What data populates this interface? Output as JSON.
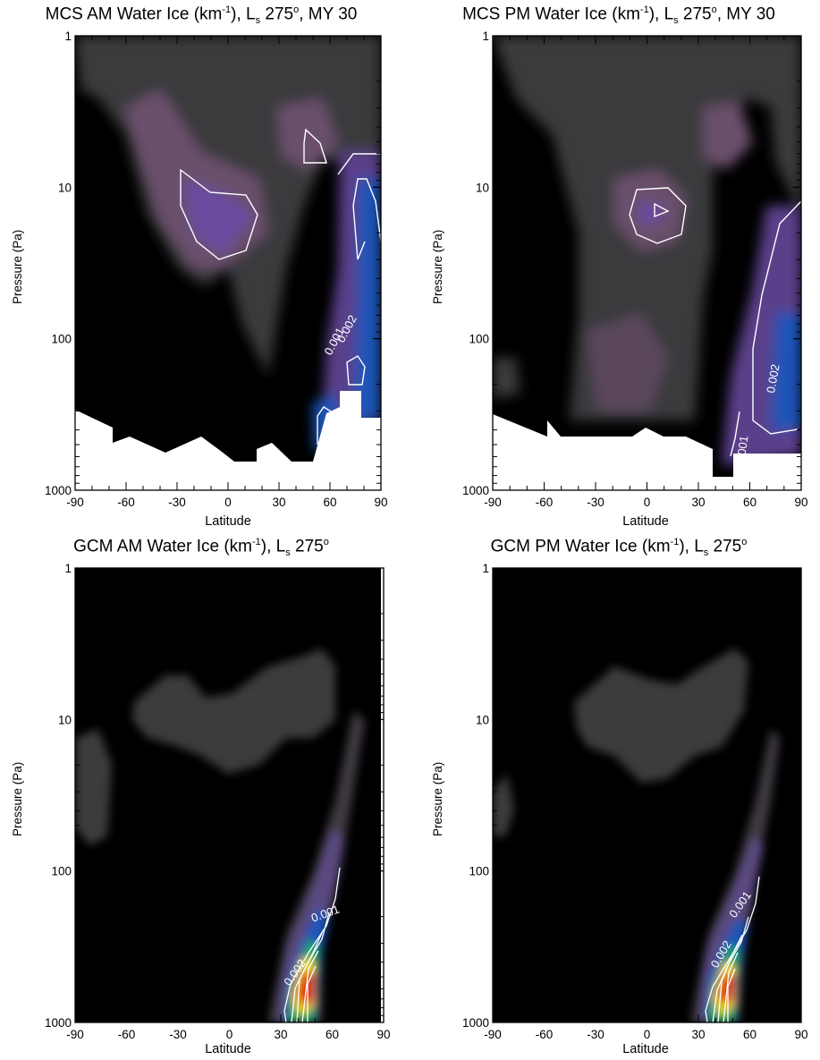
{
  "chart_data": [
    {
      "id": "mcs_am",
      "type": "heatmap",
      "title": {
        "main": "MCS AM Water Ice (km",
        "exp": "-1",
        "mid": "), L",
        "sub": "s",
        "tail": " 275",
        "deg": "o",
        "end": ", MY 30"
      },
      "xlabel": "Latitude",
      "ylabel": "Pressure (Pa)",
      "xlim": [
        -90,
        90
      ],
      "ylim_log_pa": [
        1000,
        1
      ],
      "xticks": [
        "-90",
        "-60",
        "-30",
        "0",
        "30",
        "60",
        "90"
      ],
      "yticks": [
        "1",
        "10",
        "100",
        "1000"
      ],
      "contour_labels": [
        "0.001",
        "0.002"
      ],
      "features": [
        {
          "lat": 0,
          "pressure_pa": 15,
          "level": "0.0015"
        },
        {
          "lat": -25,
          "pressure_pa": 5,
          "level": "0.0008"
        },
        {
          "lat": 48,
          "pressure_pa": 7,
          "level": "0.0012"
        },
        {
          "lat": 78,
          "pressure_pa": 20,
          "level": "0.004"
        },
        {
          "lat": 80,
          "pressure_pa": 200,
          "level": "0.004"
        },
        {
          "lat": 57,
          "pressure_pa": 330,
          "level": "0.003"
        }
      ],
      "missing_below_pa": [
        [
          -90,
          300
        ],
        [
          -80,
          350
        ],
        [
          -70,
          400
        ],
        [
          -60,
          500
        ],
        [
          -45,
          400
        ],
        [
          -30,
          600
        ],
        [
          -10,
          400
        ],
        [
          0,
          500
        ],
        [
          10,
          700
        ],
        [
          20,
          700
        ],
        [
          30,
          500
        ],
        [
          40,
          700
        ],
        [
          55,
          300
        ],
        [
          65,
          250
        ],
        [
          80,
          300
        ],
        [
          90,
          300
        ]
      ]
    },
    {
      "id": "mcs_pm",
      "type": "heatmap",
      "title": {
        "main": "MCS PM Water Ice (km",
        "exp": "-1",
        "mid": "), L",
        "sub": "s",
        "tail": " 275",
        "deg": "o",
        "end": ", MY 30"
      },
      "xlabel": "Latitude",
      "ylabel": "Pressure (Pa)",
      "xlim": [
        -90,
        90
      ],
      "ylim_log_pa": [
        1000,
        1
      ],
      "xticks": [
        "-90",
        "-60",
        "-30",
        "0",
        "30",
        "60",
        "90"
      ],
      "yticks": [
        "1",
        "10",
        "100",
        "1000"
      ],
      "contour_labels": [
        "0.002",
        "0.001"
      ],
      "features": [
        {
          "lat": 7,
          "pressure_pa": 13,
          "level": "0.0025"
        },
        {
          "lat": 38,
          "pressure_pa": 7,
          "level": "0.0009"
        },
        {
          "lat": -15,
          "pressure_pa": 150,
          "level": "0.0009"
        },
        {
          "lat": 80,
          "pressure_pa": 200,
          "level": "0.003"
        }
      ],
      "missing_below_pa": [
        [
          -90,
          300
        ],
        [
          -75,
          400
        ],
        [
          -60,
          300
        ],
        [
          -40,
          500
        ],
        [
          -20,
          500
        ],
        [
          0,
          500
        ],
        [
          20,
          500
        ],
        [
          35,
          500
        ],
        [
          40,
          800
        ],
        [
          50,
          800
        ],
        [
          60,
          600
        ],
        [
          80,
          600
        ],
        [
          90,
          600
        ]
      ]
    },
    {
      "id": "gcm_am",
      "type": "heatmap",
      "title": {
        "main": "GCM AM Water Ice (km",
        "exp": "-1",
        "mid": "), L",
        "sub": "s",
        "tail": " 275",
        "deg": "o",
        "end": ""
      },
      "xlabel": "Latitude",
      "ylabel": "Pressure (Pa)",
      "xlim": [
        -90,
        90
      ],
      "ylim_log_pa": [
        1000,
        1
      ],
      "xticks": [
        "-90",
        "-60",
        "-30",
        "0",
        "30",
        "60",
        "90"
      ],
      "yticks": [
        "1",
        "10",
        "100",
        "1000"
      ],
      "contour_labels": [
        "0.001",
        "0.002"
      ],
      "features": [
        {
          "lat": 46,
          "pressure_pa": 500,
          "level": "0.010"
        },
        {
          "lat": 0,
          "pressure_pa": 15,
          "level": "0.0005"
        },
        {
          "lat": 45,
          "pressure_pa": 8,
          "level": "0.0005"
        }
      ]
    },
    {
      "id": "gcm_pm",
      "type": "heatmap",
      "title": {
        "main": "GCM PM Water Ice (km",
        "exp": "-1",
        "mid": "), L",
        "sub": "s",
        "tail": " 275",
        "deg": "o",
        "end": ""
      },
      "xlabel": "Latitude",
      "ylabel": "Pressure (Pa)",
      "xlim": [
        -90,
        90
      ],
      "ylim_log_pa": [
        1000,
        1
      ],
      "xticks": [
        "-90",
        "-60",
        "-30",
        "0",
        "30",
        "60",
        "90"
      ],
      "yticks": [
        "1",
        "10",
        "100",
        "1000"
      ],
      "contour_labels": [
        "0.001",
        "0.002"
      ],
      "features": [
        {
          "lat": 46,
          "pressure_pa": 500,
          "level": "0.010"
        },
        {
          "lat": 8,
          "pressure_pa": 12,
          "level": "0.0005"
        }
      ]
    }
  ],
  "colors": {
    "background": "#000000",
    "low": "#3a3a3a",
    "mid": "#7a5a7c",
    "violet": "#5b3fb0",
    "blue": "#1a4fb0",
    "green": "#1fa84a",
    "yellow": "#f0e020",
    "red": "#e81010",
    "contour": "#ffffff"
  }
}
